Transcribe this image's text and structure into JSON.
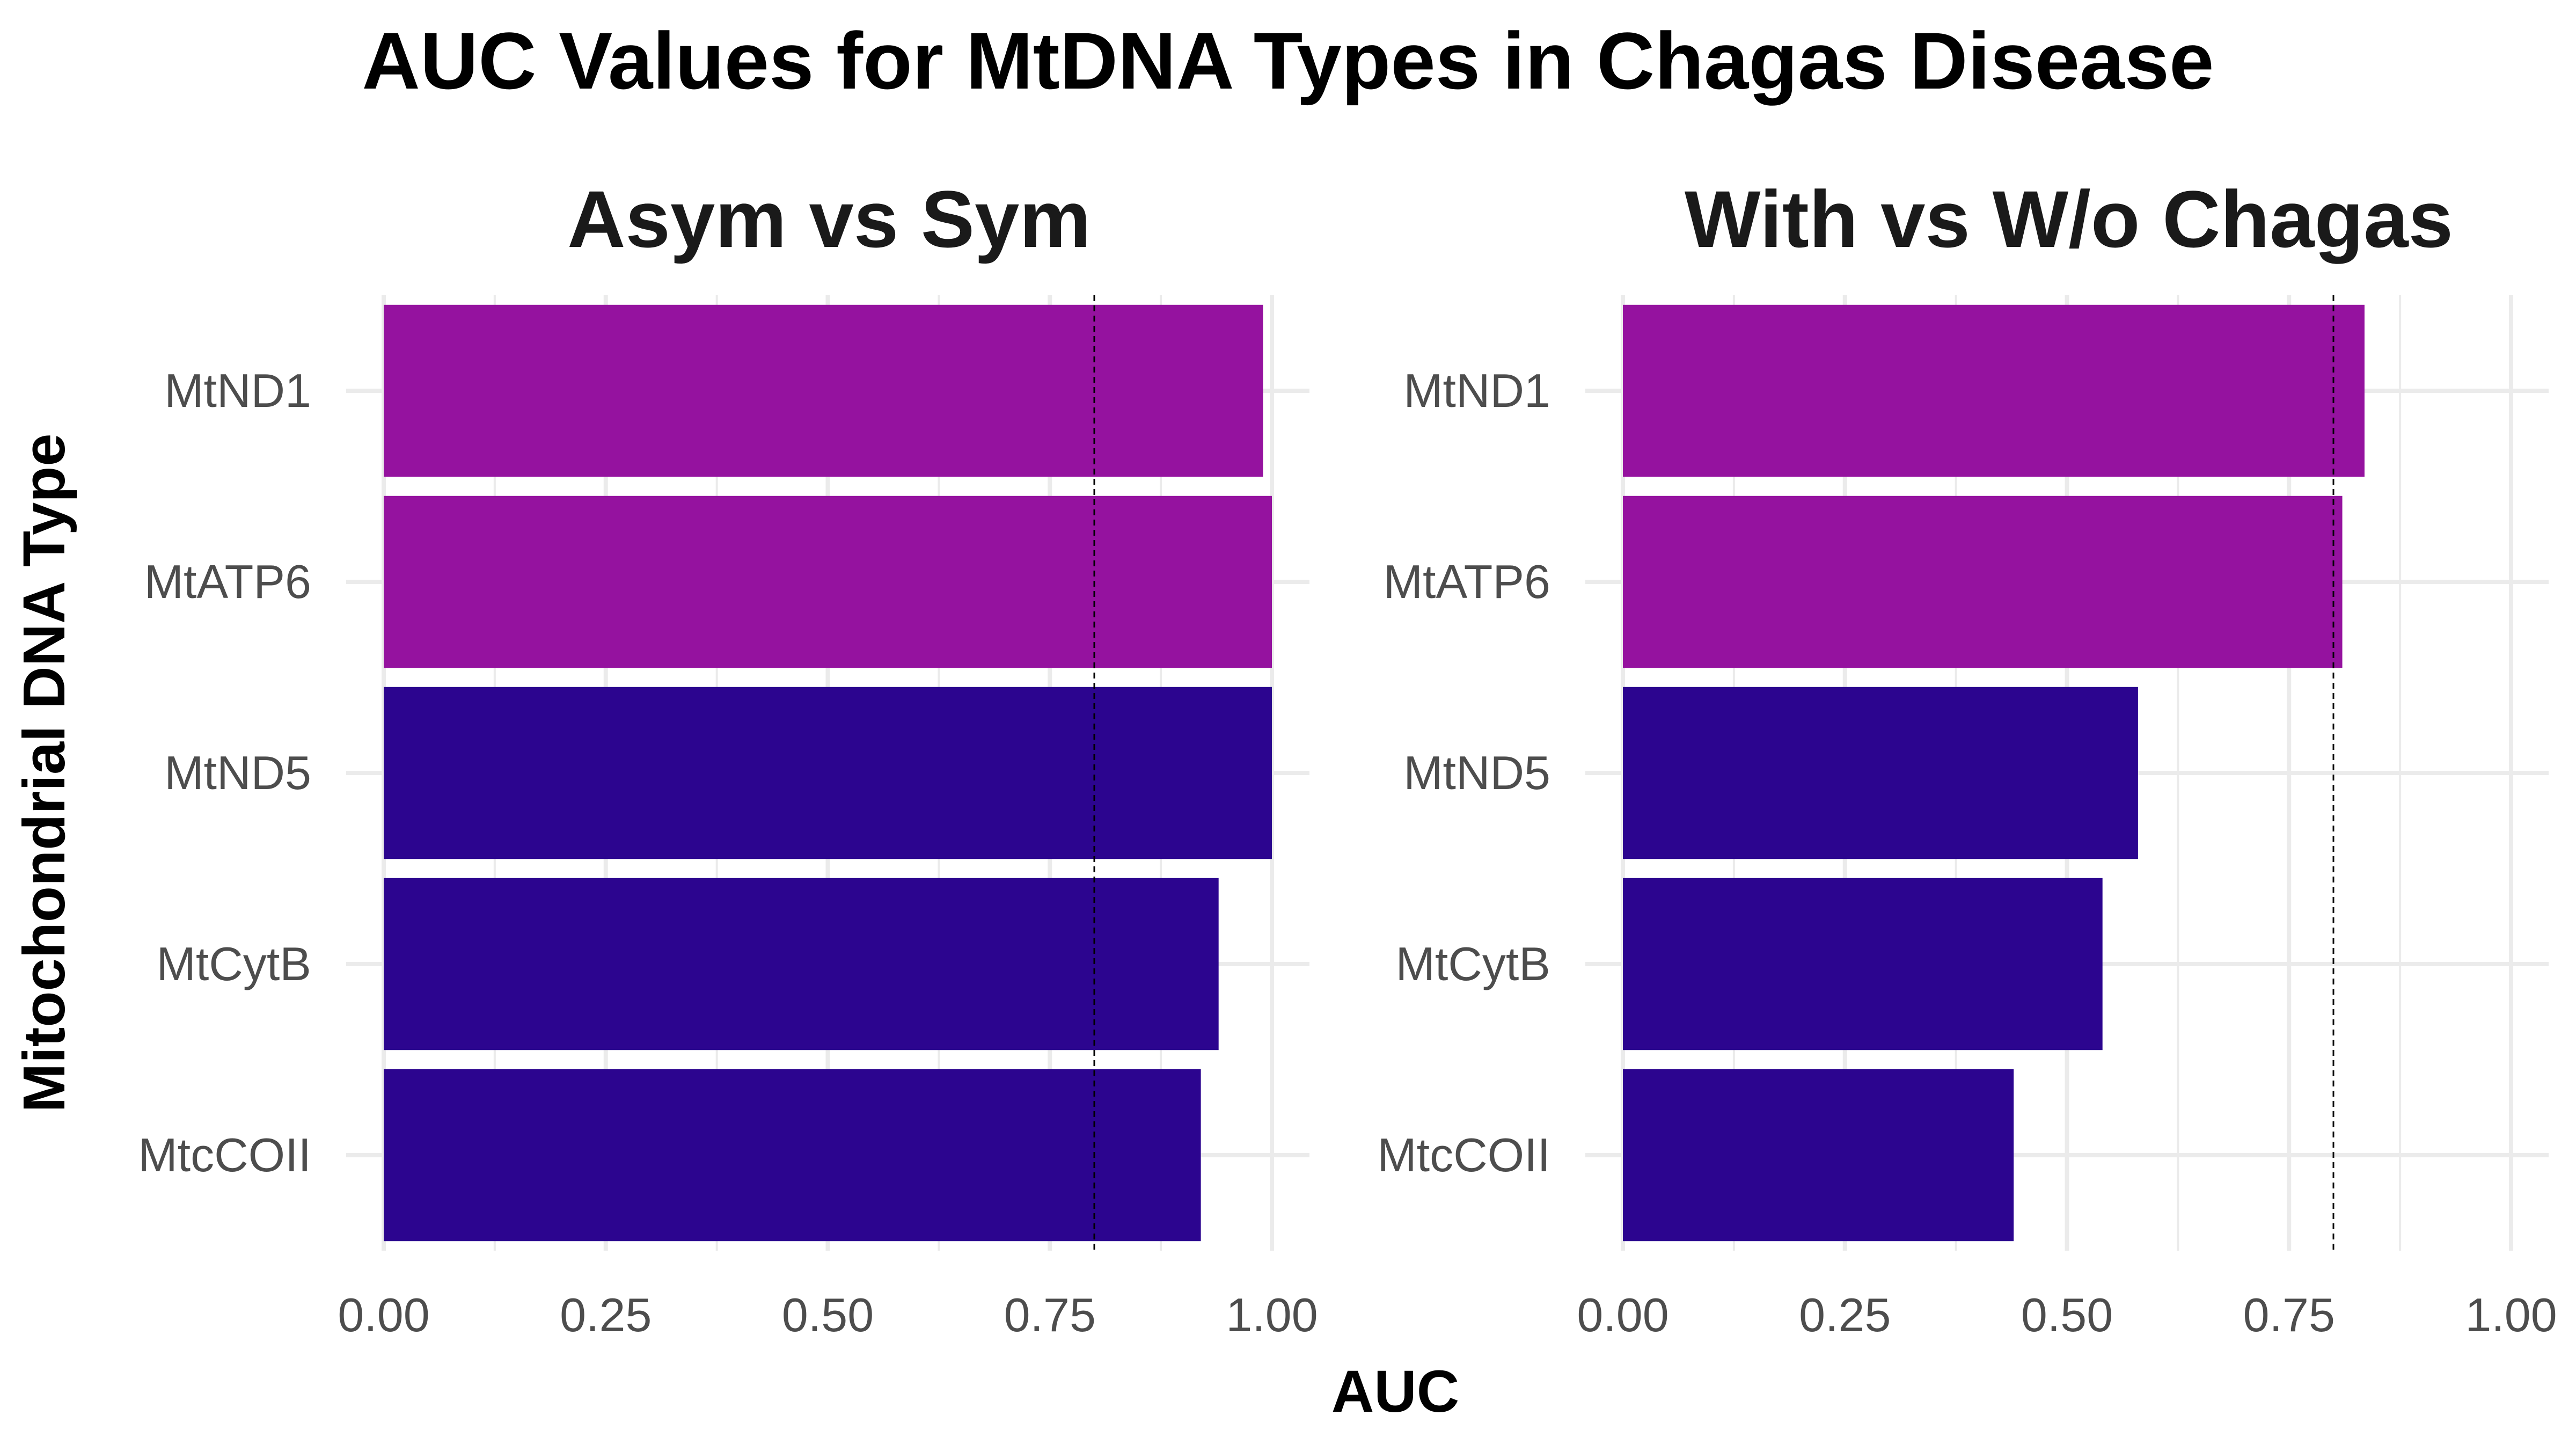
{
  "chart_data": {
    "type": "bar",
    "orientation": "horizontal",
    "title": "AUC Values for MtDNA Types in Chagas Disease",
    "xlabel": "AUC",
    "ylabel": "Mitochondrial DNA Type",
    "xlim": [
      0,
      1
    ],
    "x_ticks": [
      "0.00",
      "0.25",
      "0.50",
      "0.75",
      "1.00"
    ],
    "x_tick_values": [
      0,
      0.25,
      0.5,
      0.75,
      1.0
    ],
    "reference_line": 0.8,
    "colors": {
      "highlight": "#95129F",
      "base": "#2C058F",
      "grid": "#EBEBEB",
      "text": "#4D4D4D"
    },
    "panels": [
      {
        "title": "Asym vs Sym",
        "categories": [
          "MtND1",
          "MtATP6",
          "MtND5",
          "MtCytB",
          "MtcCOII"
        ],
        "values": [
          0.99,
          1.0,
          1.0,
          0.94,
          0.92
        ],
        "highlight": [
          true,
          true,
          false,
          false,
          false
        ]
      },
      {
        "title": "With vs W/o Chagas",
        "categories": [
          "MtND1",
          "MtATP6",
          "MtND5",
          "MtCytB",
          "MtcCOII"
        ],
        "values": [
          0.835,
          0.81,
          0.58,
          0.54,
          0.44
        ],
        "highlight": [
          true,
          true,
          false,
          false,
          false
        ]
      }
    ]
  }
}
